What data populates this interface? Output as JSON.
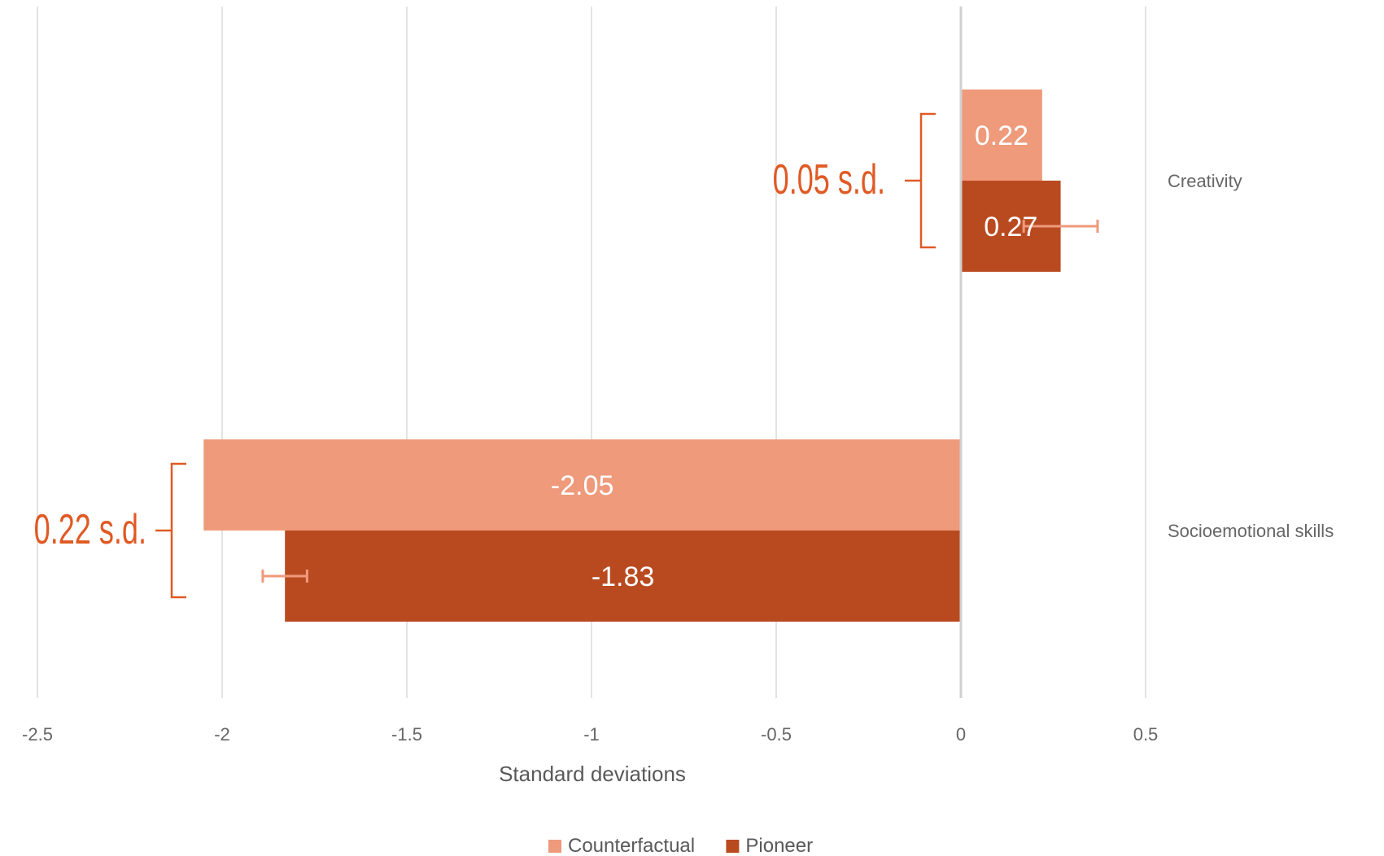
{
  "chart_data": {
    "type": "bar",
    "orientation": "horizontal",
    "categories": [
      "Creativity",
      "Socioemotional skills"
    ],
    "series": [
      {
        "name": "Counterfactual",
        "color": "#EE9A7B",
        "values": [
          0.22,
          -2.05
        ],
        "data_labels": [
          "0.22",
          "-2.05"
        ],
        "error": [
          null,
          null
        ]
      },
      {
        "name": "Pioneer",
        "color": "#B94A20",
        "values": [
          0.27,
          -1.83
        ],
        "data_labels": [
          "0.27",
          "-1.83"
        ],
        "error": [
          0.1,
          0.06
        ]
      }
    ],
    "xlim": [
      -2.5,
      0.5
    ],
    "xticks": [
      -2.5,
      -2,
      -1.5,
      -1,
      -0.5,
      0,
      0.5
    ],
    "xtick_labels": [
      "-2.5",
      "-2",
      "-1.5",
      "-1",
      "-0.5",
      "0",
      "0.5"
    ],
    "xlabel": "Standard deviations",
    "ylabel": "",
    "title": "",
    "grid": true,
    "legend_position": "bottom",
    "annotations": [
      {
        "text": "0.05 s.d.",
        "category": "Creativity",
        "color": "#E05A24"
      },
      {
        "text": "0.22 s.d.",
        "category": "Socioemotional skills",
        "color": "#E05A24"
      }
    ]
  }
}
